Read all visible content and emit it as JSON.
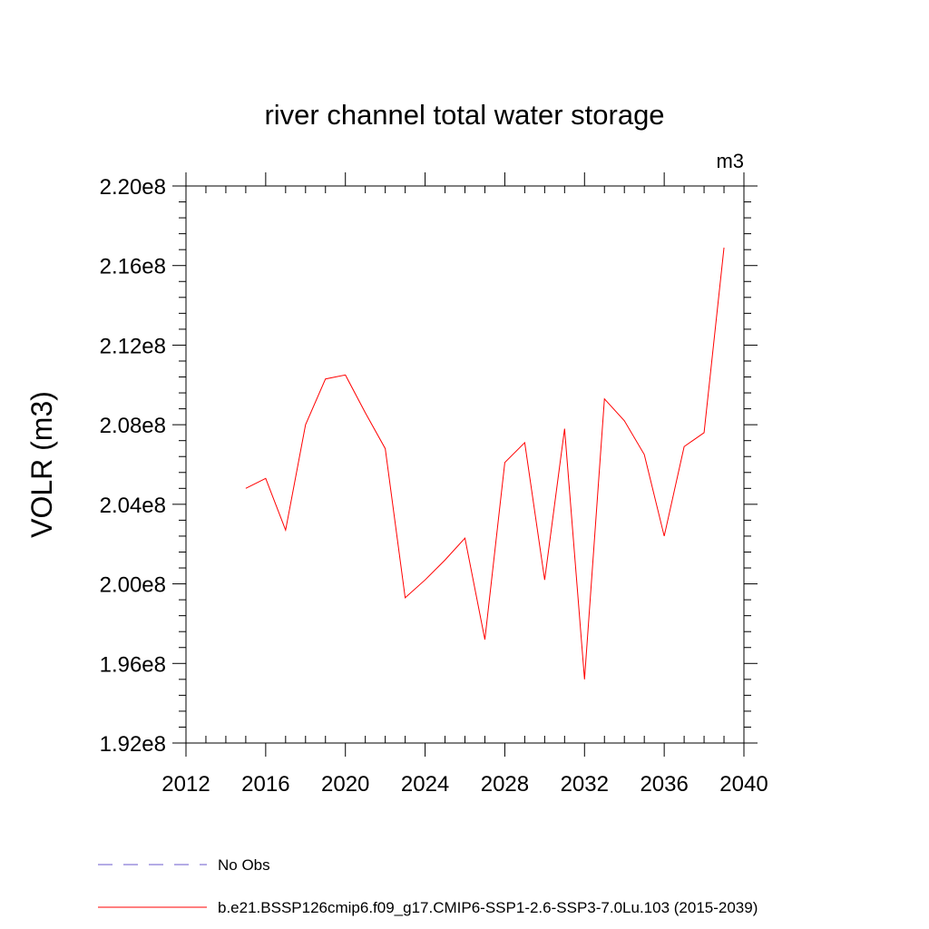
{
  "chart_data": {
    "type": "line",
    "title": "river channel total water storage",
    "units_label": "m3",
    "xlabel": "",
    "ylabel": "VOLR  (m3)",
    "xlim": [
      2012,
      2040
    ],
    "ylim": [
      192000000.0,
      220000000.0
    ],
    "x_ticks": [
      2012,
      2016,
      2020,
      2024,
      2028,
      2032,
      2036,
      2040
    ],
    "x_tick_labels": [
      "2012",
      "2016",
      "2020",
      "2024",
      "2028",
      "2032",
      "2036",
      "2040"
    ],
    "y_ticks": [
      192000000.0,
      196000000.0,
      200000000.0,
      204000000.0,
      208000000.0,
      212000000.0,
      216000000.0,
      220000000.0
    ],
    "y_tick_labels": [
      "1.92e8",
      "1.96e8",
      "2.00e8",
      "2.04e8",
      "2.08e8",
      "2.12e8",
      "2.16e8",
      "2.20e8"
    ],
    "legend": [
      {
        "name": "No Obs",
        "color": "#6a5acd",
        "style": "dashed"
      },
      {
        "name": "b.e21.BSSP126cmip6.f09_g17.CMIP6-SSP1-2.6-SSP3-7.0Lu.103 (2015-2039)",
        "color": "#ff0000",
        "style": "solid"
      }
    ],
    "series": [
      {
        "name": "b.e21.BSSP126cmip6.f09_g17.CMIP6-SSP1-2.6-SSP3-7.0Lu.103 (2015-2039)",
        "color": "#ff0000",
        "x": [
          2015,
          2016,
          2017,
          2018,
          2019,
          2020,
          2021,
          2022,
          2023,
          2024,
          2025,
          2026,
          2027,
          2028,
          2029,
          2030,
          2031,
          2032,
          2033,
          2034,
          2035,
          2036,
          2037,
          2038,
          2039
        ],
        "values": [
          204800000.0,
          205300000.0,
          202700000.0,
          208000000.0,
          210300000.0,
          210500000.0,
          208600000.0,
          206800000.0,
          199300000.0,
          200200000.0,
          201200000.0,
          202300000.0,
          197200000.0,
          206100000.0,
          207100000.0,
          200200000.0,
          207800000.0,
          195200000.0,
          209300000.0,
          208200000.0,
          206500000.0,
          202400000.0,
          206900000.0,
          207600000.0,
          216900000.0
        ]
      }
    ]
  }
}
